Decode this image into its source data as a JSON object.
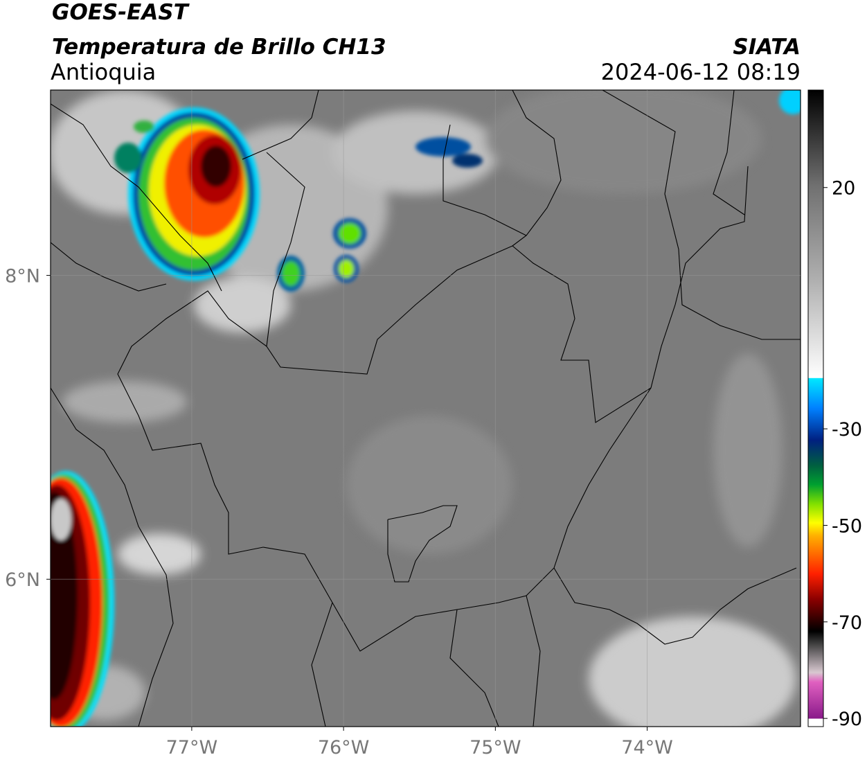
{
  "header": {
    "title": "GOES-EAST",
    "subtitle": "Temperatura de Brillo CH13",
    "region": "Antioquia",
    "source": "SIATA",
    "timestamp": "2024-06-12 08:19"
  },
  "map": {
    "xlim": [
      -77.93,
      -72.99
    ],
    "ylim": [
      5.03,
      9.22
    ],
    "xticks": [
      {
        "value": -77,
        "label": "77°W"
      },
      {
        "value": -76,
        "label": "76°W"
      },
      {
        "value": -75,
        "label": "75°W"
      },
      {
        "value": -74,
        "label": "74°W"
      }
    ],
    "yticks": [
      {
        "value": 6,
        "label": "6°N"
      },
      {
        "value": 8,
        "label": "8°N"
      }
    ]
  },
  "colorbar": {
    "lim": [
      -91.7,
      40.2
    ],
    "ticks": [
      20,
      -30,
      -50,
      -70,
      -90
    ]
  }
}
